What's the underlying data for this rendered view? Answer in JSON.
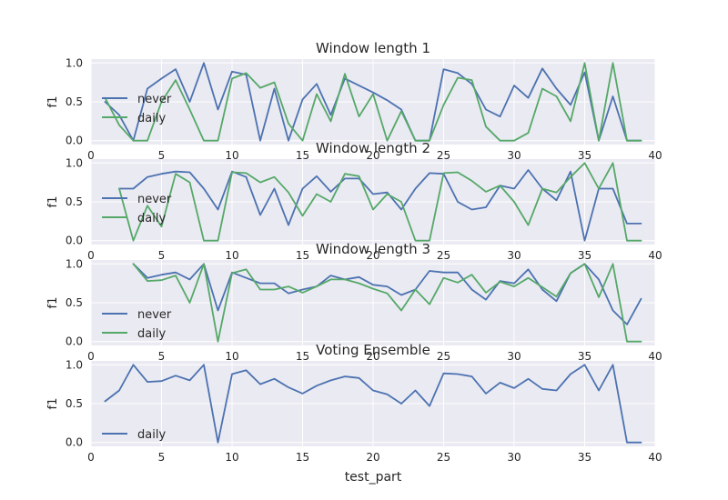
{
  "chart_data": [
    {
      "type": "line",
      "title": "Window length 1",
      "xlabel": "",
      "ylabel": "f1",
      "xlim": [
        0,
        40
      ],
      "ylim": [
        -0.05,
        1.05
      ],
      "xticks": [
        "0",
        "5",
        "10",
        "15",
        "20",
        "25",
        "30",
        "35",
        "40"
      ],
      "yticks": [
        "0.0",
        "0.5",
        "1.0"
      ],
      "grid": true,
      "legend": "center-left",
      "series": [
        {
          "name": "never",
          "color": "#4c72b0",
          "x": [
            1,
            2,
            3,
            4,
            5,
            6,
            7,
            8,
            9,
            10,
            11,
            12,
            13,
            14,
            15,
            16,
            17,
            18,
            19,
            20,
            21,
            22,
            23,
            24,
            25,
            26,
            27,
            28,
            29,
            30,
            31,
            32,
            33,
            34,
            35,
            36,
            37,
            38,
            39
          ],
          "y": [
            0.5,
            0.33,
            0.0,
            0.67,
            0.8,
            0.92,
            0.5,
            1.0,
            0.4,
            0.89,
            0.85,
            0.0,
            0.67,
            0.0,
            0.53,
            0.73,
            0.33,
            0.8,
            0.71,
            0.62,
            0.52,
            0.4,
            0.0,
            0.0,
            0.92,
            0.87,
            0.73,
            0.4,
            0.31,
            0.71,
            0.55,
            0.93,
            0.67,
            0.46,
            0.88,
            0.0,
            0.57,
            0.0,
            0.0
          ]
        },
        {
          "name": "daily",
          "color": "#55a868",
          "x": [
            1,
            2,
            3,
            4,
            5,
            6,
            7,
            8,
            9,
            10,
            11,
            12,
            13,
            14,
            15,
            16,
            17,
            18,
            19,
            20,
            21,
            22,
            23,
            24,
            25,
            26,
            27,
            28,
            29,
            30,
            31,
            32,
            33,
            34,
            35,
            36,
            37,
            38,
            39
          ],
          "y": [
            0.55,
            0.2,
            0.0,
            0.0,
            0.5,
            0.78,
            0.4,
            0.0,
            0.0,
            0.8,
            0.87,
            0.68,
            0.75,
            0.22,
            0.0,
            0.6,
            0.25,
            0.86,
            0.31,
            0.6,
            0.0,
            0.38,
            0.0,
            0.0,
            0.46,
            0.81,
            0.78,
            0.18,
            0.0,
            0.0,
            0.1,
            0.67,
            0.57,
            0.25,
            1.0,
            0.0,
            1.0,
            0.0,
            0.0
          ]
        }
      ]
    },
    {
      "type": "line",
      "title": "Window length 2",
      "xlabel": "",
      "ylabel": "f1",
      "xlim": [
        0,
        40
      ],
      "ylim": [
        -0.05,
        1.05
      ],
      "xticks": [
        "0",
        "5",
        "10",
        "15",
        "20",
        "25",
        "30",
        "35",
        "40"
      ],
      "yticks": [
        "0.0",
        "0.5",
        "1.0"
      ],
      "grid": true,
      "legend": "center-left",
      "series": [
        {
          "name": "never",
          "color": "#4c72b0",
          "x": [
            2,
            3,
            4,
            5,
            6,
            7,
            8,
            9,
            10,
            11,
            12,
            13,
            14,
            15,
            16,
            17,
            18,
            19,
            20,
            21,
            22,
            23,
            24,
            25,
            26,
            27,
            28,
            29,
            30,
            31,
            32,
            33,
            34,
            35,
            36,
            37,
            38,
            39
          ],
          "y": [
            0.67,
            0.67,
            0.82,
            0.86,
            0.89,
            0.88,
            0.67,
            0.4,
            0.89,
            0.82,
            0.33,
            0.67,
            0.2,
            0.67,
            0.83,
            0.63,
            0.8,
            0.8,
            0.6,
            0.62,
            0.4,
            0.67,
            0.87,
            0.86,
            0.5,
            0.4,
            0.43,
            0.71,
            0.67,
            0.91,
            0.67,
            0.52,
            0.89,
            0.0,
            0.67,
            0.67,
            0.22,
            0.22
          ]
        },
        {
          "name": "daily",
          "color": "#55a868",
          "x": [
            2,
            3,
            4,
            5,
            6,
            7,
            8,
            9,
            10,
            11,
            12,
            13,
            14,
            15,
            16,
            17,
            18,
            19,
            20,
            21,
            22,
            23,
            24,
            25,
            26,
            27,
            28,
            29,
            30,
            31,
            32,
            33,
            34,
            35,
            36,
            37,
            38,
            39
          ],
          "y": [
            0.67,
            0.0,
            0.45,
            0.18,
            0.86,
            0.75,
            0.0,
            0.0,
            0.88,
            0.87,
            0.75,
            0.82,
            0.62,
            0.32,
            0.6,
            0.5,
            0.86,
            0.83,
            0.4,
            0.6,
            0.5,
            0.0,
            0.0,
            0.87,
            0.88,
            0.77,
            0.63,
            0.71,
            0.5,
            0.2,
            0.67,
            0.62,
            0.82,
            1.0,
            0.67,
            1.0,
            0.0,
            0.0
          ]
        }
      ]
    },
    {
      "type": "line",
      "title": "Window length 3",
      "xlabel": "",
      "ylabel": "f1",
      "xlim": [
        0,
        40
      ],
      "ylim": [
        -0.05,
        1.05
      ],
      "xticks": [
        "0",
        "5",
        "10",
        "15",
        "20",
        "25",
        "30",
        "35",
        "40"
      ],
      "yticks": [
        "0.0",
        "0.5",
        "1.0"
      ],
      "grid": true,
      "legend": "lower-left",
      "series": [
        {
          "name": "never",
          "color": "#4c72b0",
          "x": [
            3,
            4,
            5,
            6,
            7,
            8,
            9,
            10,
            11,
            12,
            13,
            14,
            15,
            16,
            17,
            18,
            19,
            20,
            21,
            22,
            23,
            24,
            25,
            26,
            27,
            28,
            29,
            30,
            31,
            32,
            33,
            34,
            35,
            36,
            37,
            38,
            39
          ],
          "y": [
            1.0,
            0.82,
            0.86,
            0.89,
            0.8,
            1.0,
            0.4,
            0.89,
            0.82,
            0.75,
            0.75,
            0.62,
            0.67,
            0.71,
            0.85,
            0.8,
            0.83,
            0.73,
            0.71,
            0.6,
            0.67,
            0.91,
            0.89,
            0.89,
            0.67,
            0.54,
            0.78,
            0.75,
            0.93,
            0.67,
            0.52,
            0.88,
            1.0,
            0.8,
            0.4,
            0.22,
            0.55
          ]
        },
        {
          "name": "daily",
          "color": "#55a868",
          "x": [
            3,
            4,
            5,
            6,
            7,
            8,
            9,
            10,
            11,
            12,
            13,
            14,
            15,
            16,
            17,
            18,
            19,
            20,
            21,
            22,
            23,
            24,
            25,
            26,
            27,
            28,
            29,
            30,
            31,
            32,
            33,
            34,
            35,
            36,
            37,
            38,
            39
          ],
          "y": [
            1.0,
            0.78,
            0.79,
            0.85,
            0.5,
            1.0,
            0.0,
            0.88,
            0.93,
            0.67,
            0.67,
            0.71,
            0.63,
            0.71,
            0.8,
            0.8,
            0.75,
            0.68,
            0.62,
            0.4,
            0.67,
            0.48,
            0.82,
            0.76,
            0.86,
            0.63,
            0.77,
            0.71,
            0.82,
            0.7,
            0.58,
            0.88,
            1.0,
            0.57,
            1.0,
            0.0,
            0.0
          ]
        }
      ]
    },
    {
      "type": "line",
      "title": "Voting Ensemble",
      "xlabel": "test_part",
      "ylabel": "f1",
      "xlim": [
        0,
        40
      ],
      "ylim": [
        -0.05,
        1.05
      ],
      "xticks": [
        "0",
        "5",
        "10",
        "15",
        "20",
        "25",
        "30",
        "35",
        "40"
      ],
      "yticks": [
        "0.0",
        "0.5",
        "1.0"
      ],
      "grid": true,
      "legend": "lower-left",
      "series": [
        {
          "name": "daily",
          "color": "#4c72b0",
          "x": [
            1,
            2,
            3,
            4,
            5,
            6,
            7,
            8,
            9,
            10,
            11,
            12,
            13,
            14,
            15,
            16,
            17,
            18,
            19,
            20,
            21,
            22,
            23,
            24,
            25,
            26,
            27,
            28,
            29,
            30,
            31,
            32,
            33,
            34,
            35,
            36,
            37,
            38,
            39
          ],
          "y": [
            0.53,
            0.67,
            1.0,
            0.78,
            0.79,
            0.86,
            0.8,
            1.0,
            0.0,
            0.88,
            0.93,
            0.75,
            0.82,
            0.71,
            0.63,
            0.73,
            0.8,
            0.85,
            0.83,
            0.67,
            0.62,
            0.5,
            0.67,
            0.47,
            0.89,
            0.88,
            0.85,
            0.63,
            0.77,
            0.7,
            0.82,
            0.69,
            0.67,
            0.88,
            1.0,
            0.67,
            1.0,
            0.0,
            0.0
          ]
        }
      ]
    }
  ]
}
